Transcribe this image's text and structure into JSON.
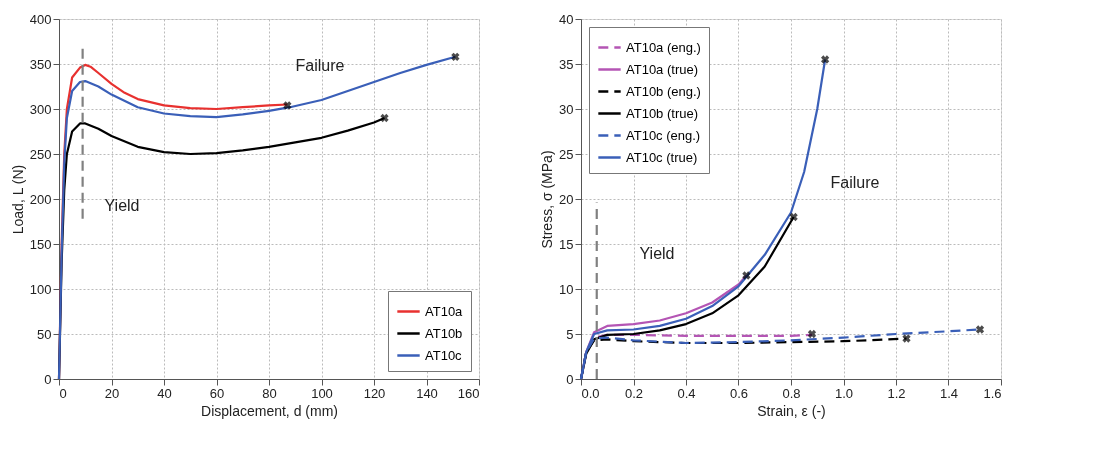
{
  "chart_data": [
    {
      "type": "line",
      "xlabel": "Displacement, d (mm)",
      "ylabel": "Load, L (N)",
      "xlim": [
        0,
        160
      ],
      "xticks": [
        0,
        20,
        40,
        60,
        80,
        100,
        120,
        140,
        160
      ],
      "ylim": [
        0,
        400
      ],
      "yticks": [
        0,
        50,
        100,
        150,
        200,
        250,
        300,
        350,
        400
      ],
      "grid": true,
      "legend": "bottom right",
      "marker": "none",
      "series": [
        {
          "name": "AT10a",
          "color": "#e8312f",
          "line_style": "solid",
          "x": [
            0,
            1,
            2,
            3,
            5,
            8,
            10,
            12,
            15,
            20,
            25,
            30,
            40,
            50,
            60,
            70,
            80,
            87
          ],
          "values": [
            0,
            150,
            250,
            300,
            335,
            346,
            349,
            347,
            340,
            328,
            318,
            311,
            304,
            301,
            300,
            302,
            304,
            305
          ]
        },
        {
          "name": "AT10b",
          "color": "#000000",
          "line_style": "solid",
          "x": [
            0,
            1,
            2,
            3,
            5,
            8,
            10,
            15,
            20,
            30,
            40,
            50,
            60,
            70,
            80,
            90,
            100,
            110,
            120,
            124
          ],
          "values": [
            0,
            130,
            210,
            250,
            275,
            284,
            284,
            278,
            270,
            258,
            252,
            250,
            251,
            254,
            258,
            263,
            268,
            276,
            285,
            290
          ]
        },
        {
          "name": "AT10c",
          "color": "#3a5fb8",
          "line_style": "solid",
          "x": [
            0,
            1,
            2,
            3,
            5,
            8,
            10,
            15,
            20,
            30,
            40,
            50,
            60,
            70,
            80,
            88,
            100,
            110,
            120,
            130,
            140,
            151
          ],
          "values": [
            0,
            140,
            240,
            290,
            320,
            330,
            331,
            325,
            316,
            302,
            295,
            292,
            291,
            294,
            298,
            302,
            310,
            320,
            330,
            340,
            349,
            358
          ]
        },
        {
          "type": "scatter",
          "marker": "cross",
          "color": "#000000",
          "x": [
            87,
            124,
            151
          ],
          "values": [
            304,
            290,
            358
          ]
        },
        {
          "color": "#808080",
          "line_style": "dashed",
          "x": [
            9,
            9
          ],
          "values": [
            178,
            370
          ]
        }
      ],
      "annotations": [
        "Yield",
        "Failure"
      ]
    },
    {
      "type": "line",
      "xlabel": "Strain, ε (-)",
      "ylabel": "Stress, σ (MPa)",
      "xlim": [
        0,
        1.6
      ],
      "xticks": [
        {
          "value": 0,
          "label": "0.0"
        },
        0.2,
        0.4,
        0.6,
        0.8,
        {
          "value": 1,
          "label": "1.0"
        },
        1.2,
        1.4,
        1.6
      ],
      "ylim": [
        0,
        40
      ],
      "yticks": [
        0,
        5,
        10,
        15,
        20,
        25,
        30,
        35,
        40
      ],
      "grid": true,
      "legend": "top left",
      "marker": "none",
      "series": [
        {
          "name": "AT10a (eng.)",
          "color": "#b455b4",
          "line_style": "dashed",
          "x": [
            0,
            0.02,
            0.05,
            0.1,
            0.2,
            0.4,
            0.6,
            0.8,
            0.88
          ],
          "values": [
            0,
            3,
            4.6,
            4.9,
            4.9,
            4.8,
            4.8,
            4.8,
            4.9
          ]
        },
        {
          "name": "AT10a (true)",
          "color": "#b455b4",
          "line_style": "solid",
          "x": [
            0,
            0.02,
            0.05,
            0.1,
            0.2,
            0.3,
            0.4,
            0.5,
            0.6,
            0.63
          ],
          "values": [
            0,
            3,
            5.2,
            5.9,
            6.1,
            6.5,
            7.3,
            8.5,
            10.5,
            11.5
          ]
        },
        {
          "name": "AT10b (eng.)",
          "color": "#000000",
          "line_style": "dashed",
          "x": [
            0,
            0.02,
            0.05,
            0.1,
            0.2,
            0.4,
            0.6,
            0.8,
            1.0,
            1.1,
            1.24
          ],
          "values": [
            0,
            3,
            4.3,
            4.4,
            4.2,
            4.0,
            4.0,
            4.1,
            4.2,
            4.3,
            4.5
          ]
        },
        {
          "name": "AT10b (true)",
          "color": "#000000",
          "line_style": "solid",
          "x": [
            0,
            0.02,
            0.05,
            0.1,
            0.2,
            0.3,
            0.4,
            0.5,
            0.6,
            0.7,
            0.8,
            0.81
          ],
          "values": [
            0,
            2.8,
            4.4,
            4.9,
            5.0,
            5.4,
            6.1,
            7.3,
            9.3,
            12.5,
            17.5,
            18
          ]
        },
        {
          "name": "AT10c (eng.)",
          "color": "#3a5fb8",
          "line_style": "dashed",
          "x": [
            0,
            0.02,
            0.05,
            0.1,
            0.2,
            0.4,
            0.6,
            0.8,
            1.0,
            1.2,
            1.4,
            1.52
          ],
          "values": [
            0,
            3,
            4.5,
            4.6,
            4.3,
            4.0,
            4.1,
            4.3,
            4.6,
            5.0,
            5.3,
            5.5
          ]
        },
        {
          "name": "AT10c (true)",
          "color": "#3a5fb8",
          "line_style": "solid",
          "x": [
            0,
            0.02,
            0.05,
            0.1,
            0.2,
            0.3,
            0.4,
            0.5,
            0.6,
            0.7,
            0.8,
            0.85,
            0.9,
            0.93
          ],
          "values": [
            0,
            3,
            5,
            5.4,
            5.5,
            5.9,
            6.7,
            8.1,
            10.3,
            13.8,
            18.5,
            23,
            30,
            35.5
          ]
        },
        {
          "type": "scatter",
          "marker": "cross",
          "color": "#000000",
          "x": [
            0.88,
            1.24,
            1.52,
            0.63,
            0.81,
            0.93
          ],
          "values": [
            5,
            4.5,
            5.5,
            11.5,
            18,
            35.5
          ]
        },
        {
          "color": "#808080",
          "line_style": "dashed",
          "x": [
            0.06,
            0.06
          ],
          "values": [
            0,
            19.6
          ]
        }
      ],
      "annotations": [
        "Yield",
        "Failure"
      ]
    }
  ]
}
